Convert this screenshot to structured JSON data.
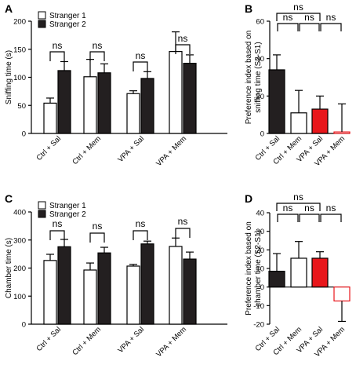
{
  "colors": {
    "stranger1": "#ffffff",
    "stranger2": "#231f20",
    "red": "#e8161b",
    "axis": "#000000"
  },
  "chart_data": [
    {
      "panel": "A",
      "type": "bar",
      "categories": [
        "Ctrl + Sal",
        "Ctrl + Mem",
        "VPA + Sal",
        "VPA + Mem"
      ],
      "ylabel": "Sniffing time  (s)",
      "ylim": [
        0,
        200
      ],
      "yticks": [
        "0",
        "50",
        "100",
        "150",
        "200"
      ],
      "legend": [
        "Stranger 1",
        "Stranger 2"
      ],
      "series": [
        {
          "name": "Stranger 1",
          "values": [
            54,
            101,
            71,
            146
          ],
          "errors": [
            9,
            31,
            5,
            35
          ]
        },
        {
          "name": "Stranger 2",
          "values": [
            112,
            108,
            98,
            125
          ],
          "errors": [
            16,
            16,
            12,
            15
          ]
        }
      ],
      "annotations": [
        "ns",
        "ns",
        "ns",
        "ns"
      ]
    },
    {
      "panel": "B",
      "type": "bar",
      "categories": [
        "Ctrl + Sal",
        "Ctrl + Mem",
        "VPA + Sal",
        "VPA + Mem"
      ],
      "ylabel": "Preference index based on sniffing time (S2-S1)",
      "ylim": [
        0,
        60
      ],
      "yticks": [
        "0",
        "20",
        "40",
        "60"
      ],
      "values": [
        34,
        11,
        13,
        0.8
      ],
      "errors": [
        8,
        12,
        7,
        15
      ],
      "annotations": [
        "ns",
        "ns",
        "ns",
        "ns"
      ]
    },
    {
      "panel": "C",
      "type": "bar",
      "categories": [
        "Ctrl + Sal",
        "Ctrl + Mem",
        "VPA + Sal",
        "VPA + Mem"
      ],
      "ylabel": "Chamber time (s)",
      "ylim": [
        0,
        400
      ],
      "yticks": [
        "0",
        "100",
        "200",
        "300",
        "400"
      ],
      "legend": [
        "Stranger 1",
        "Stranger 2"
      ],
      "series": [
        {
          "name": "Stranger 1",
          "values": [
            227,
            193,
            207,
            277
          ],
          "errors": [
            22,
            25,
            6,
            30
          ]
        },
        {
          "name": "Stranger 2",
          "values": [
            276,
            254,
            286,
            232
          ],
          "errors": [
            26,
            20,
            10,
            25
          ]
        }
      ],
      "annotations": [
        "ns",
        "ns",
        "ns",
        "ns"
      ]
    },
    {
      "panel": "D",
      "type": "bar",
      "categories": [
        "Ctrl + Sal",
        "Ctrl + Mem",
        "VPA + Sal",
        "VPA + Mem"
      ],
      "ylabel": "Preference index based on chamber time (S2-S1)",
      "ylim": [
        -20,
        40
      ],
      "yticks": [
        "-20",
        "-10",
        "0",
        "10",
        "20",
        "30",
        "40"
      ],
      "values": [
        8.5,
        15.5,
        15.5,
        -7.5
      ],
      "errors": [
        9.5,
        9,
        3.5,
        11
      ],
      "annotations": [
        "ns",
        "ns",
        "ns",
        "ns"
      ]
    }
  ]
}
